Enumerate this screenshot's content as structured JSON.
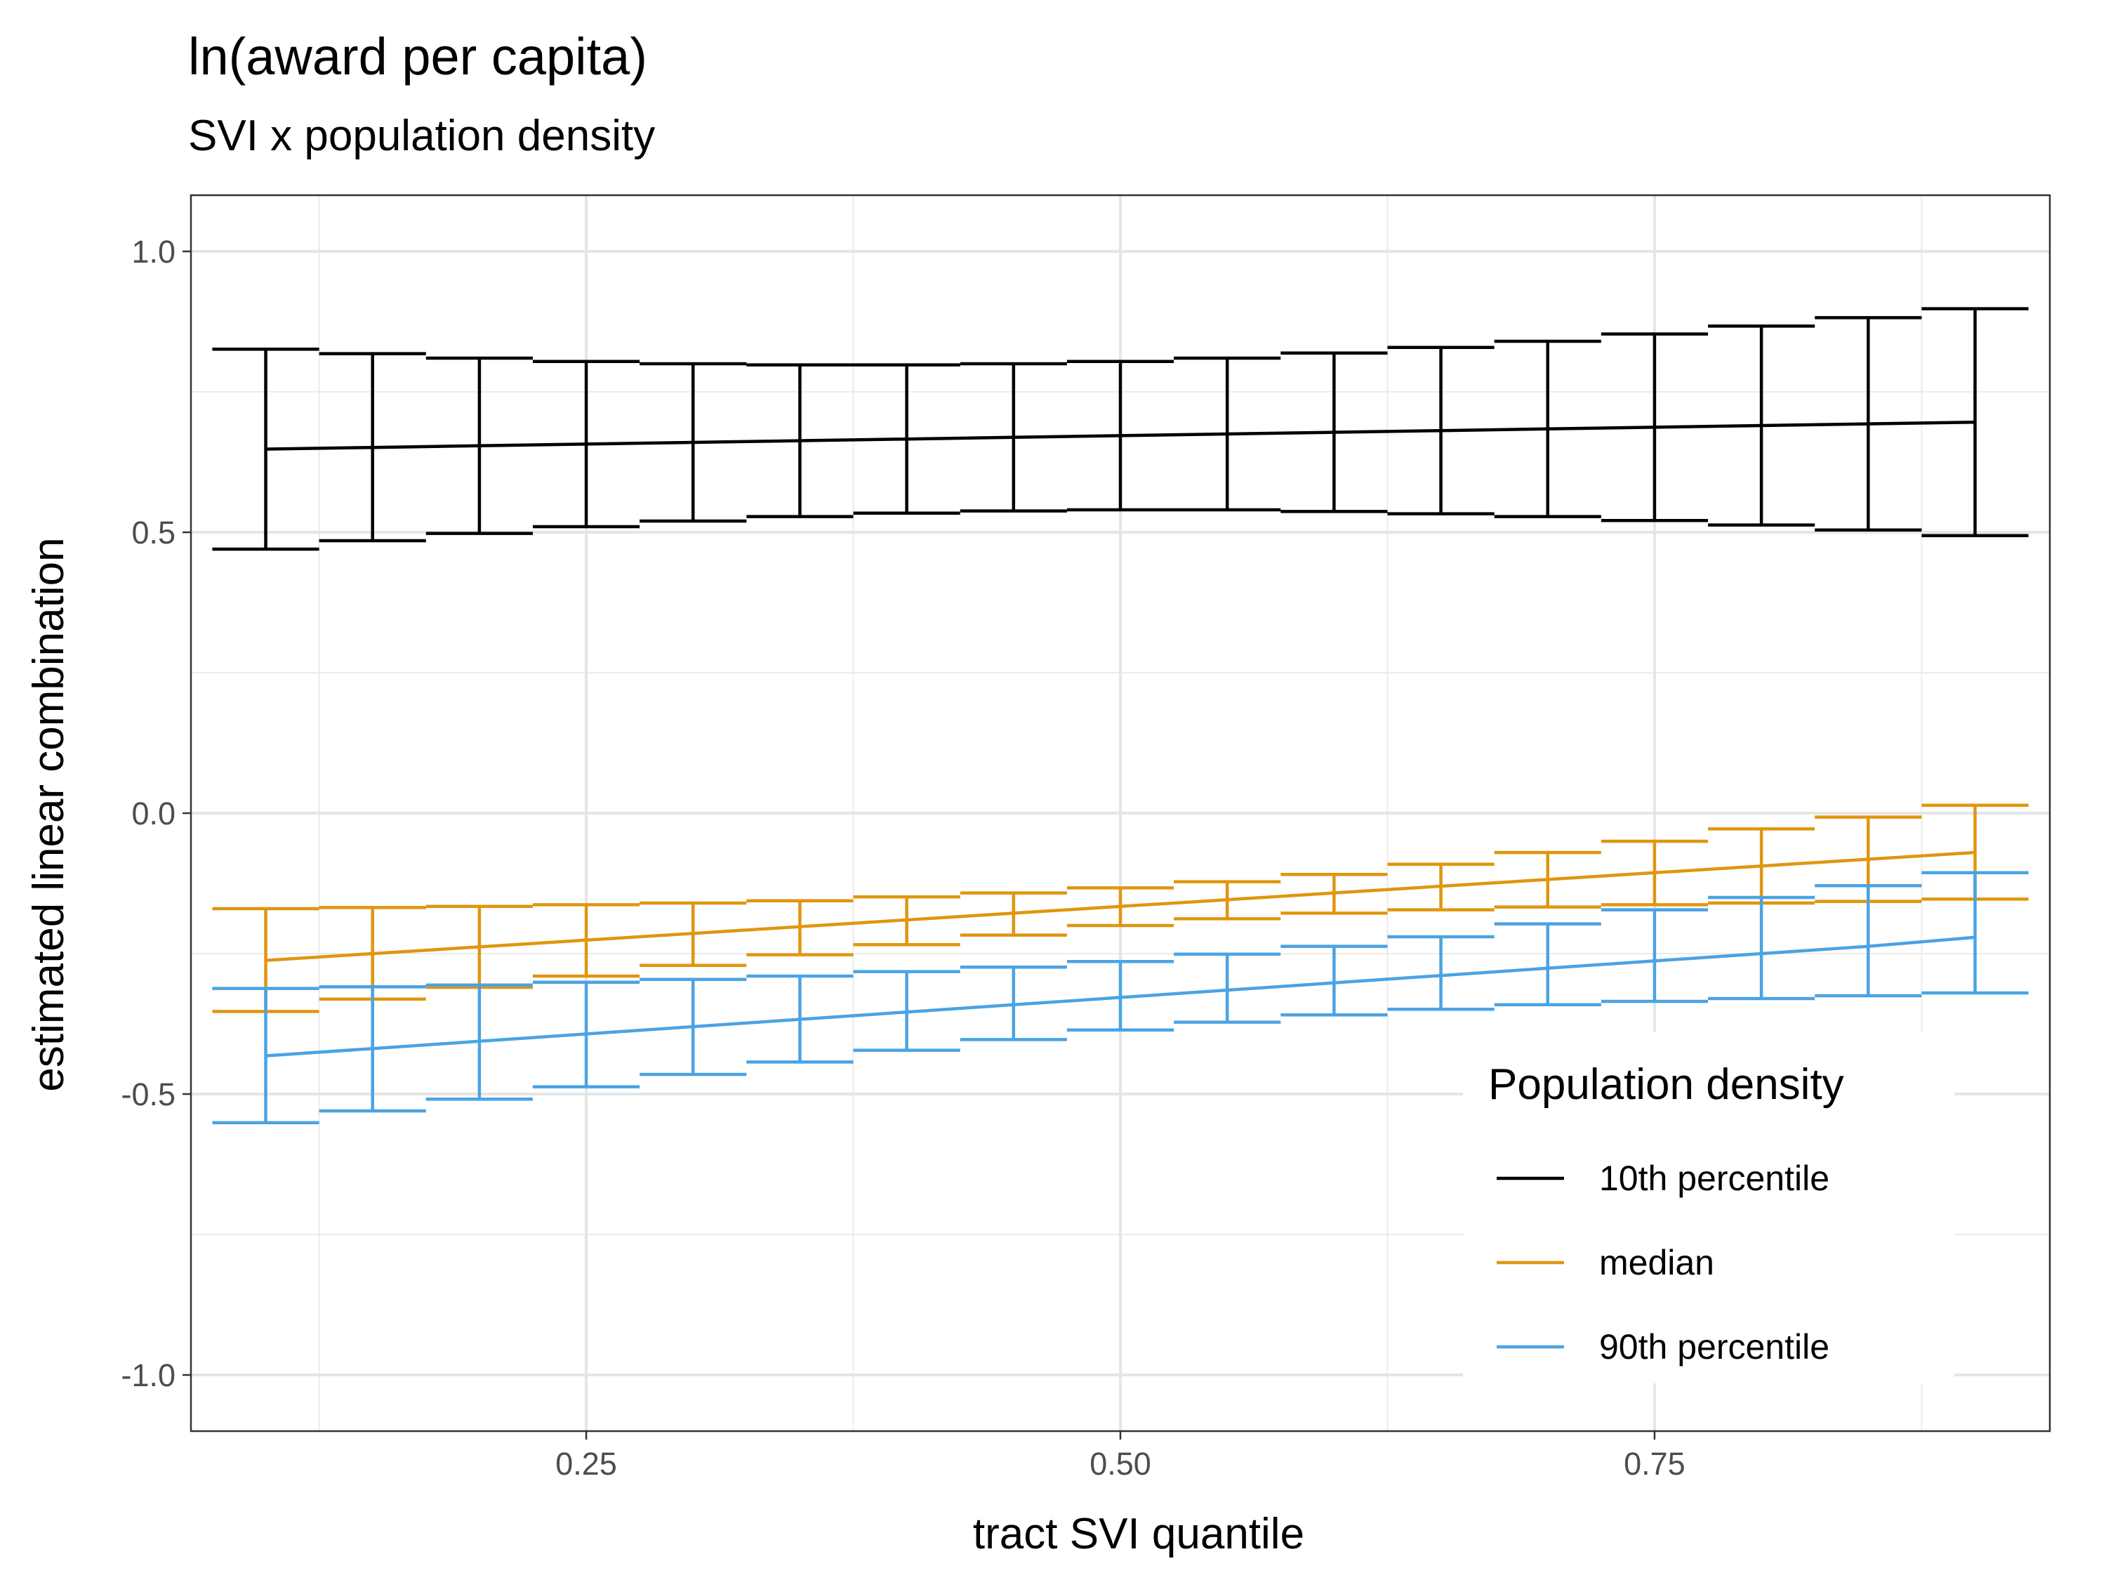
{
  "chart_data": {
    "type": "line",
    "title": "ln(award per capita)",
    "subtitle": "SVI x population density",
    "xlabel": "tract SVI quantile",
    "ylabel": "estimated linear combination",
    "xlim": [
      0.065,
      0.935
    ],
    "ylim": [
      -1.1,
      1.1
    ],
    "x_ticks": [
      0.25,
      0.5,
      0.75
    ],
    "x_tick_labels": [
      "0.25",
      "0.50",
      "0.75"
    ],
    "y_ticks": [
      -1.0,
      -0.5,
      0.0,
      0.5,
      1.0
    ],
    "y_tick_labels": [
      "-1.0",
      "-0.5",
      "0.0",
      "0.5",
      "1.0"
    ],
    "grid": true,
    "legend": {
      "title": "Population density",
      "position": "bottom-right"
    },
    "x": [
      0.1,
      0.15,
      0.2,
      0.25,
      0.3,
      0.35,
      0.4,
      0.45,
      0.5,
      0.55,
      0.6,
      0.65,
      0.7,
      0.75,
      0.8,
      0.85,
      0.9
    ],
    "series": [
      {
        "name": "10th percentile",
        "color": "#000000",
        "values": [
          0.648,
          0.651,
          0.654,
          0.657,
          0.66,
          0.663,
          0.666,
          0.669,
          0.672,
          0.675,
          0.678,
          0.681,
          0.684,
          0.687,
          0.69,
          0.693,
          0.696
        ],
        "lower": [
          0.47,
          0.485,
          0.498,
          0.51,
          0.52,
          0.528,
          0.534,
          0.538,
          0.54,
          0.54,
          0.537,
          0.533,
          0.528,
          0.521,
          0.513,
          0.504,
          0.494
        ],
        "upper": [
          0.826,
          0.818,
          0.81,
          0.804,
          0.8,
          0.798,
          0.798,
          0.8,
          0.804,
          0.81,
          0.819,
          0.829,
          0.84,
          0.853,
          0.867,
          0.882,
          0.898
        ]
      },
      {
        "name": "median",
        "color": "#E0960E",
        "values": [
          -0.262,
          -0.25,
          -0.238,
          -0.226,
          -0.214,
          -0.202,
          -0.19,
          -0.178,
          -0.166,
          -0.154,
          -0.142,
          -0.13,
          -0.118,
          -0.106,
          -0.094,
          -0.082,
          -0.07
        ],
        "lower": [
          -0.353,
          -0.331,
          -0.31,
          -0.29,
          -0.271,
          -0.252,
          -0.234,
          -0.217,
          -0.2,
          -0.188,
          -0.178,
          -0.172,
          -0.167,
          -0.163,
          -0.16,
          -0.157,
          -0.153
        ],
        "upper": [
          -0.17,
          -0.168,
          -0.166,
          -0.163,
          -0.16,
          -0.156,
          -0.149,
          -0.142,
          -0.133,
          -0.122,
          -0.109,
          -0.091,
          -0.07,
          -0.05,
          -0.028,
          -0.007,
          0.014
        ]
      },
      {
        "name": "90th percentile",
        "color": "#4AA3E3",
        "values": [
          -0.432,
          -0.419,
          -0.406,
          -0.393,
          -0.38,
          -0.367,
          -0.354,
          -0.341,
          -0.328,
          -0.315,
          -0.302,
          -0.289,
          -0.276,
          -0.263,
          -0.25,
          -0.237,
          -0.221
        ],
        "lower": [
          -0.551,
          -0.53,
          -0.509,
          -0.487,
          -0.465,
          -0.443,
          -0.422,
          -0.403,
          -0.386,
          -0.372,
          -0.359,
          -0.349,
          -0.341,
          -0.335,
          -0.33,
          -0.325,
          -0.32
        ],
        "upper": [
          -0.312,
          -0.309,
          -0.306,
          -0.301,
          -0.296,
          -0.29,
          -0.282,
          -0.274,
          -0.264,
          -0.251,
          -0.237,
          -0.22,
          -0.197,
          -0.172,
          -0.15,
          -0.129,
          -0.106
        ]
      }
    ]
  }
}
